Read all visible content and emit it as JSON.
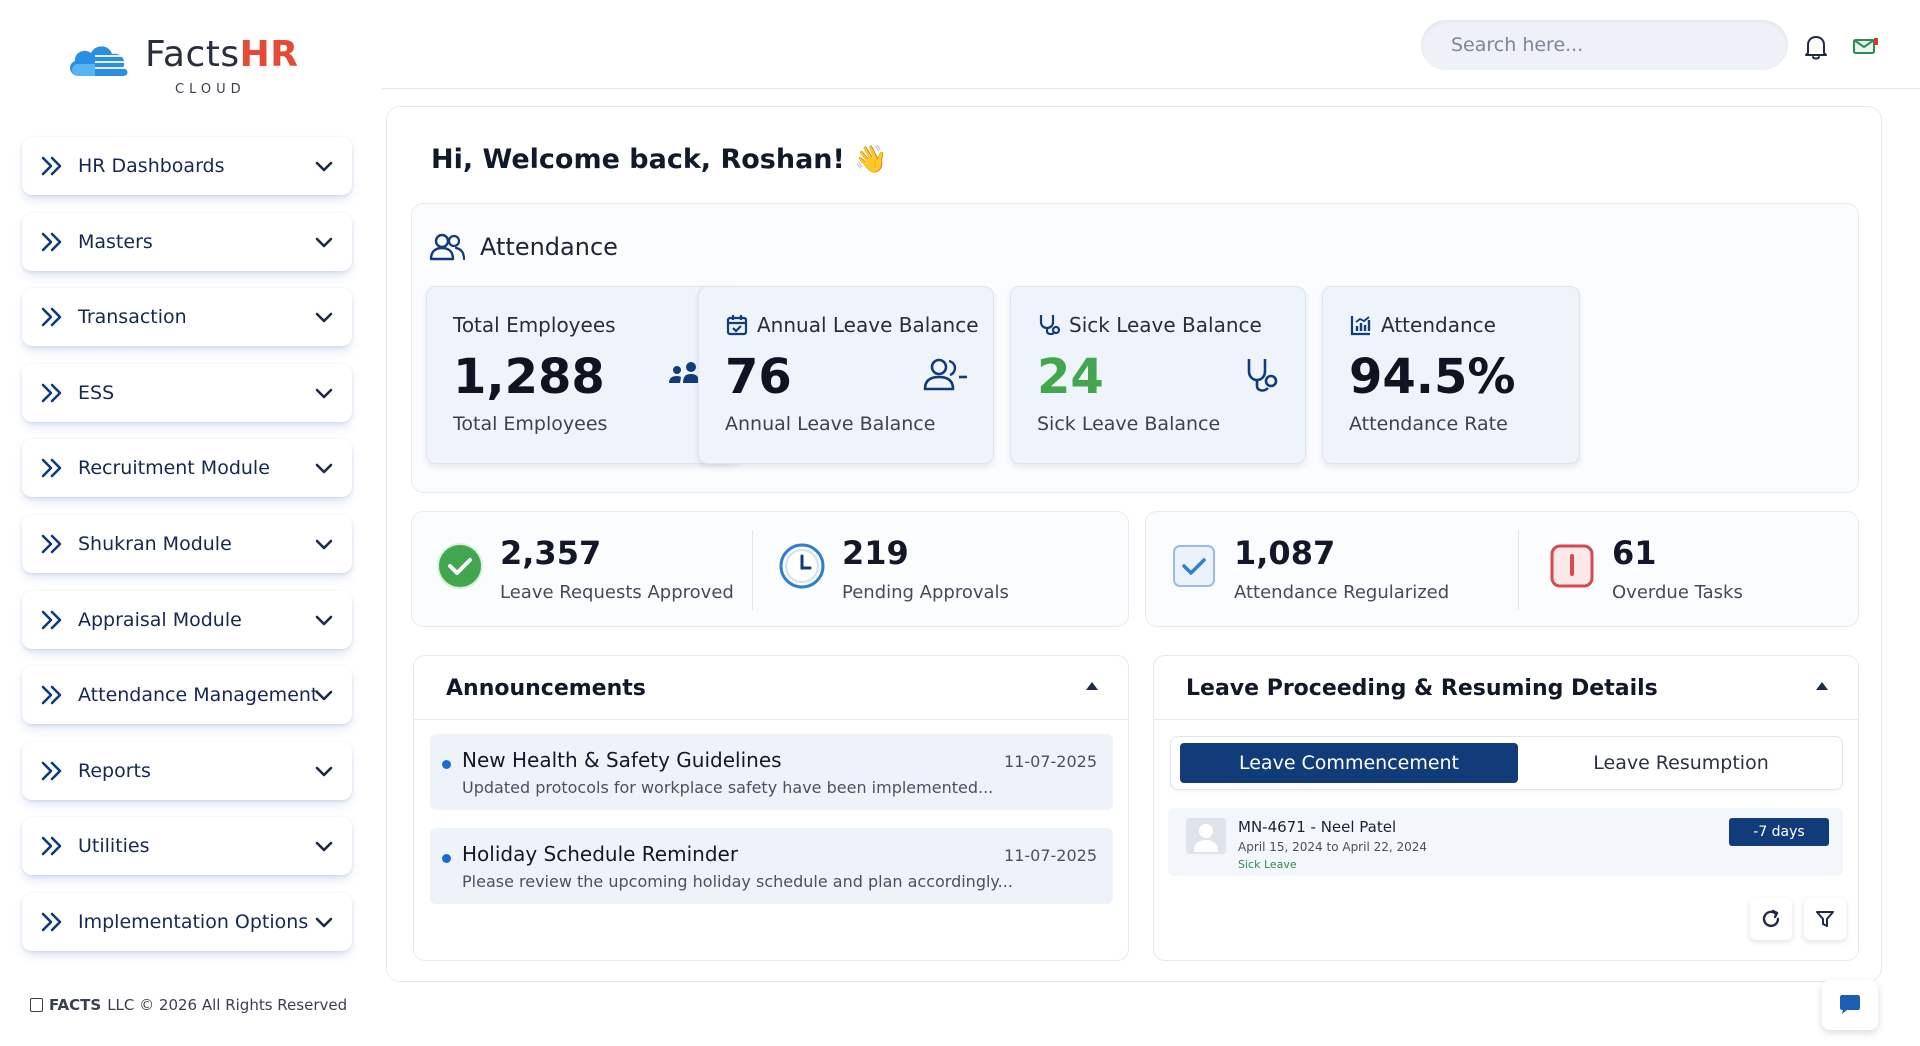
{
  "brand": {
    "name_prefix": "Facts",
    "name_suffix": "HR",
    "sub": "CLOUD"
  },
  "sidebar": {
    "items": [
      {
        "label": "HR Dashboards"
      },
      {
        "label": "Masters"
      },
      {
        "label": "Transaction"
      },
      {
        "label": "ESS"
      },
      {
        "label": "Recruitment Module"
      },
      {
        "label": "Shukran Module"
      },
      {
        "label": "Appraisal Module"
      },
      {
        "label": "Attendance Management"
      },
      {
        "label": "Reports"
      },
      {
        "label": "Utilities"
      },
      {
        "label": "Implementation Options"
      }
    ],
    "copyright_company": "FACTS",
    "copyright_rest": "LLC © 2026 All Rights Reserved"
  },
  "header": {
    "search_placeholder": "Search here..."
  },
  "main": {
    "welcome": "Hi, Welcome back, Roshan! 👋",
    "attendance": {
      "title": "Attendance",
      "cards": [
        {
          "title": "Total Employees",
          "value": "1,288",
          "sub": "Total Employees",
          "icon": "users-group-icon"
        },
        {
          "title": "Annual Leave Balance",
          "value": "76",
          "sub": "Annual Leave Balance",
          "icon": "user-minus-icon",
          "title_icon": "calendar-check-icon"
        },
        {
          "title": "Sick Leave Balance",
          "value": "24",
          "sub": "Sick Leave Balance",
          "icon": "stethoscope-icon",
          "title_icon": "stethoscope-icon",
          "value_color": "#41a64d"
        },
        {
          "title": "Attendance",
          "value": "94.5%",
          "sub": "Attendance Rate",
          "title_icon": "bar-chart-icon"
        }
      ]
    },
    "stats": [
      {
        "value": "2,357",
        "label": "Leave Requests Approved",
        "icon": "check-circle-icon"
      },
      {
        "value": "219",
        "label": "Pending Approvals",
        "icon": "clock-icon"
      },
      {
        "value": "1,087",
        "label": "Attendance Regularized",
        "icon": "check-square-icon"
      },
      {
        "value": "61",
        "label": "Overdue Tasks",
        "icon": "alert-square-icon"
      }
    ],
    "announcements": {
      "title": "Announcements",
      "items": [
        {
          "title": "New Health & Safety Guidelines",
          "date": "11-07-2025",
          "desc": "Updated protocols for workplace safety have been implemented..."
        },
        {
          "title": "Holiday Schedule Reminder",
          "date": "11-07-2025",
          "desc": "Please review the upcoming holiday schedule  and plan accordingly..."
        }
      ]
    },
    "leave": {
      "title": "Leave Proceeding & Resuming Details",
      "tabs": {
        "active": "Leave Commencement",
        "inactive": "Leave Resumption"
      },
      "rows": [
        {
          "name": "MN-4671 - Neel Patel",
          "dates": "April 15, 2024 to April 22, 2024",
          "type": "Sick Leave",
          "badge": "-7 days"
        }
      ]
    }
  }
}
